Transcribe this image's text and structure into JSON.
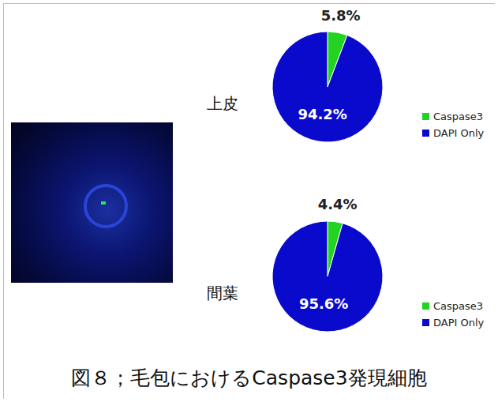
{
  "title": "図８；毛包におけるCaspase3発現細胞",
  "chart_data": [
    {
      "type": "pie",
      "title": "上皮",
      "categories": [
        "Caspase3",
        "DAPI Only"
      ],
      "values": [
        5.8,
        94.2
      ],
      "value_labels": [
        "5.8%",
        "94.2%"
      ],
      "colors": [
        "#22d322",
        "#0a0acc"
      ],
      "data_labels": true,
      "legend": "right"
    },
    {
      "type": "pie",
      "title": "間葉",
      "categories": [
        "Caspase3",
        "DAPI Only"
      ],
      "values": [
        4.4,
        95.6
      ],
      "value_labels": [
        "4.4%",
        "95.6%"
      ],
      "colors": [
        "#22d322",
        "#0a0acc"
      ],
      "data_labels": true,
      "legend": "right"
    }
  ]
}
